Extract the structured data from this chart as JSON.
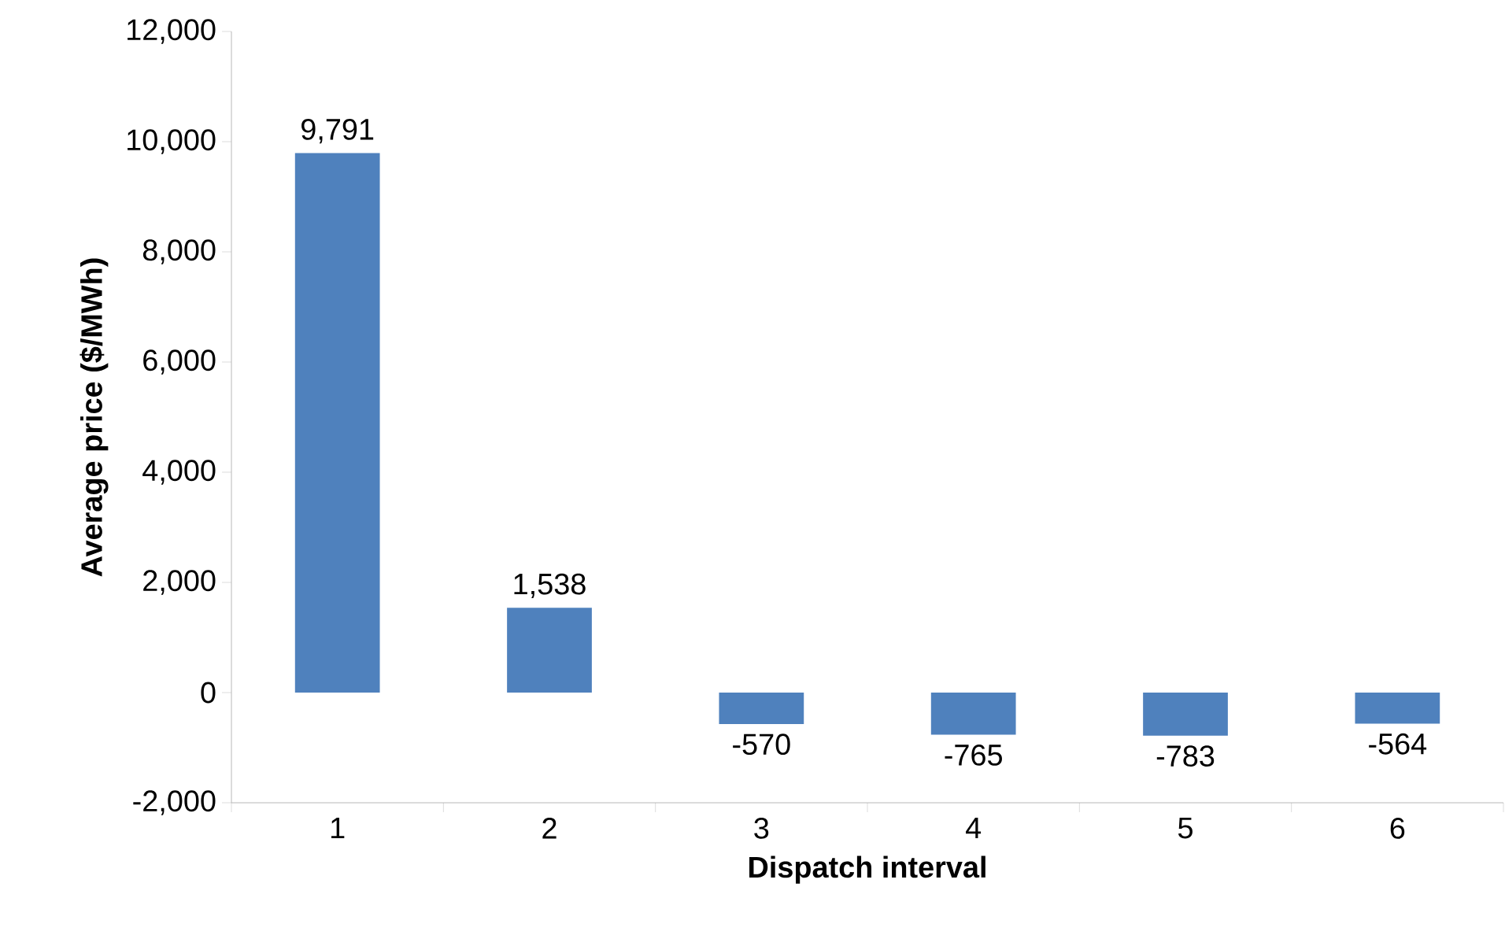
{
  "chart_data": {
    "type": "bar",
    "categories": [
      "1",
      "2",
      "3",
      "4",
      "5",
      "6"
    ],
    "values": [
      9791,
      1538,
      -570,
      -765,
      -783,
      -564
    ],
    "value_labels": [
      "9,791",
      "1,538",
      "-570",
      "-765",
      "-783",
      "-564"
    ],
    "color": "#4f81bd",
    "xlabel": "Dispatch interval",
    "ylabel": "Average price ($/MWh)",
    "ylim": [
      -2000,
      12000
    ],
    "yticks": [
      {
        "value": -2000,
        "label": "-2,000"
      },
      0,
      {
        "value": 2000,
        "label": "2,000"
      },
      {
        "value": 4000,
        "label": "4,000"
      },
      {
        "value": 6000,
        "label": "6,000"
      },
      {
        "value": 8000,
        "label": "8,000"
      },
      {
        "value": 10000,
        "label": "10,000"
      },
      {
        "value": 12000,
        "label": "12,000"
      }
    ]
  }
}
